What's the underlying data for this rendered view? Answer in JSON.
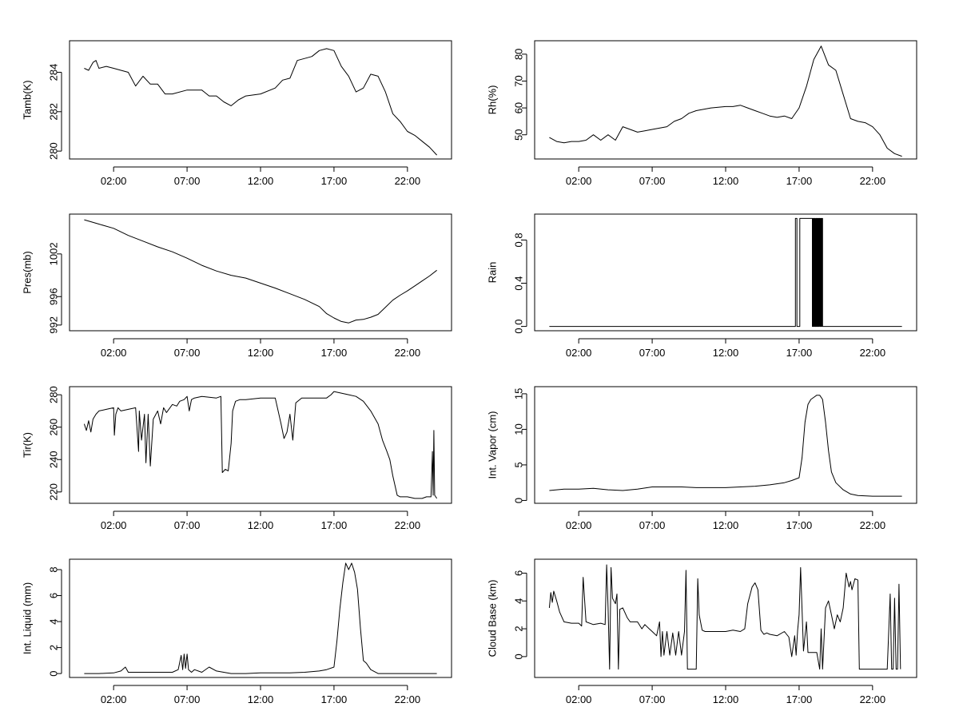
{
  "chart_data": [
    {
      "type": "line",
      "ylabel": "Tamb(K)",
      "x_ticks": [
        "02:00",
        "07:00",
        "12:00",
        "17:00",
        "22:00"
      ],
      "x_tick_hours": [
        2,
        7,
        12,
        17,
        22
      ],
      "xlim_hours": [
        -1,
        25
      ],
      "yticks": [
        280,
        282,
        284
      ],
      "ylim": [
        279.6,
        285.6
      ],
      "series": [
        {
          "x": [
            0,
            0.3,
            0.6,
            0.8,
            1,
            1.5,
            2,
            2.5,
            3,
            3.5,
            4,
            4.5,
            5,
            5.5,
            6,
            7,
            8,
            8.5,
            9,
            9.5,
            10,
            10.5,
            11,
            12,
            13,
            13.5,
            14,
            14.5,
            15,
            15.5,
            16,
            16.5,
            17,
            17.5,
            18,
            18.5,
            19,
            19.5,
            20,
            20.5,
            21,
            21.5,
            22,
            22.5,
            23,
            23.5,
            24
          ],
          "y": [
            284.2,
            284.1,
            284.5,
            284.6,
            284.2,
            284.3,
            284.2,
            284.1,
            284.0,
            283.3,
            283.8,
            283.4,
            283.4,
            282.9,
            282.9,
            283.1,
            283.1,
            282.8,
            282.8,
            282.5,
            282.3,
            282.6,
            282.8,
            282.9,
            283.2,
            283.6,
            283.7,
            284.6,
            284.7,
            284.8,
            285.1,
            285.2,
            285.1,
            284.3,
            283.8,
            283.0,
            283.2,
            283.9,
            283.8,
            283.0,
            281.9,
            281.5,
            281.0,
            280.8,
            280.5,
            280.2,
            279.8
          ]
        }
      ]
    },
    {
      "type": "line",
      "ylabel": "Rh(%)",
      "x_ticks": [
        "02:00",
        "07:00",
        "12:00",
        "17:00",
        "22:00"
      ],
      "x_tick_hours": [
        2,
        7,
        12,
        17,
        22
      ],
      "xlim_hours": [
        -1,
        25
      ],
      "yticks": [
        50,
        60,
        70,
        80
      ],
      "ylim": [
        41,
        85
      ],
      "series": [
        {
          "x": [
            0,
            0.5,
            1,
            1.5,
            2,
            2.5,
            3,
            3.5,
            4,
            4.5,
            5,
            5.5,
            6,
            6.5,
            7,
            8,
            8.5,
            9,
            9.5,
            10,
            11,
            12,
            12.5,
            13,
            13.5,
            14,
            14.5,
            15,
            15.5,
            16,
            16.5,
            17,
            17.5,
            18,
            18.5,
            19,
            19.5,
            20,
            20.5,
            21,
            21.5,
            22,
            22.5,
            23,
            23.5,
            24
          ],
          "y": [
            49,
            47.5,
            47,
            47.5,
            47.5,
            48,
            50,
            48,
            50,
            48,
            53,
            52,
            51,
            51.5,
            52,
            53,
            55,
            56,
            58,
            59,
            60,
            60.5,
            60.5,
            61,
            60,
            59,
            58,
            57,
            56.5,
            57,
            56,
            60,
            68,
            78,
            83,
            76,
            74,
            65,
            56,
            55,
            54.5,
            53,
            50,
            45,
            43,
            42
          ]
        }
      ]
    },
    {
      "type": "line",
      "ylabel": "Pres(mb)",
      "x_ticks": [
        "02:00",
        "07:00",
        "12:00",
        "17:00",
        "22:00"
      ],
      "x_tick_hours": [
        2,
        7,
        12,
        17,
        22
      ],
      "xlim_hours": [
        -1,
        25
      ],
      "yticks": [
        992,
        996,
        1002
      ],
      "ytick_labels": [
        "992",
        "996",
        "1002"
      ],
      "ylim": [
        991.2,
        1007.6
      ],
      "series": [
        {
          "x": [
            0,
            1,
            2,
            3,
            4,
            5,
            6,
            7,
            8,
            9,
            10,
            11,
            12,
            13,
            14,
            15,
            16,
            16.5,
            17,
            17.5,
            18,
            18.5,
            19,
            19.5,
            20,
            20.5,
            21,
            21.5,
            22,
            22.5,
            23,
            23.5,
            24
          ],
          "y": [
            1006.8,
            1006.2,
            1005.6,
            1004.6,
            1003.8,
            1003.0,
            1002.3,
            1001.4,
            1000.4,
            999.6,
            999.0,
            998.6,
            997.9,
            997.2,
            996.4,
            995.6,
            994.6,
            993.6,
            993.0,
            992.5,
            992.3,
            992.7,
            992.8,
            993.1,
            993.5,
            994.5,
            995.5,
            996.2,
            996.8,
            997.5,
            998.2,
            998.9,
            999.7
          ]
        }
      ]
    },
    {
      "type": "line",
      "ylabel": "Rain",
      "x_ticks": [
        "02:00",
        "07:00",
        "12:00",
        "17:00",
        "22:00"
      ],
      "x_tick_hours": [
        2,
        7,
        12,
        17,
        22
      ],
      "xlim_hours": [
        -1,
        25
      ],
      "yticks": [
        0,
        0.4,
        0.8
      ],
      "ytick_labels": [
        "0.0",
        "0.4",
        "0.8"
      ],
      "ylim": [
        -0.04,
        1.04
      ],
      "series": [
        {
          "x": [
            0,
            16.75,
            16.75,
            16.85,
            16.85,
            17.05,
            17.05,
            17.9,
            17.9,
            17.95,
            17.95,
            18.0,
            18.0,
            18.05,
            18.05,
            18.1,
            18.1,
            18.15,
            18.15,
            18.2,
            18.2,
            18.25,
            18.25,
            18.3,
            18.3,
            18.35,
            18.35,
            18.4,
            18.4,
            18.45,
            18.45,
            18.5,
            18.5,
            18.55,
            18.55,
            18.6,
            18.6,
            18.65,
            18.65,
            24
          ],
          "y": [
            0,
            0,
            1,
            1,
            0,
            0,
            1,
            1,
            0,
            0,
            1,
            1,
            0,
            0,
            1,
            1,
            0,
            0,
            1,
            1,
            0,
            0,
            1,
            1,
            0,
            0,
            1,
            1,
            0,
            0,
            1,
            1,
            0,
            0,
            1,
            1,
            0,
            0,
            0,
            0
          ]
        }
      ]
    },
    {
      "type": "line",
      "ylabel": "Tir(K)",
      "x_ticks": [
        "02:00",
        "07:00",
        "12:00",
        "17:00",
        "22:00"
      ],
      "x_tick_hours": [
        2,
        7,
        12,
        17,
        22
      ],
      "xlim_hours": [
        -1,
        25
      ],
      "yticks": [
        220,
        240,
        260,
        280
      ],
      "ylim": [
        213,
        285
      ],
      "series": [
        {
          "x": [
            0,
            0.15,
            0.3,
            0.45,
            0.6,
            0.8,
            1,
            1.5,
            2,
            2.05,
            2.15,
            2.3,
            2.5,
            3,
            3.5,
            3.7,
            3.75,
            3.9,
            4.1,
            4.2,
            4.35,
            4.5,
            4.7,
            5,
            5.2,
            5.4,
            5.6,
            6,
            6.3,
            6.5,
            6.8,
            7,
            7.15,
            7.3,
            7.5,
            8,
            9,
            9.3,
            9.4,
            9.6,
            9.8,
            10,
            10.1,
            10.3,
            10.6,
            11,
            12,
            12.5,
            13,
            13.4,
            13.6,
            13.8,
            14,
            14.2,
            14.4,
            14.8,
            15.5,
            16,
            16.5,
            16.8,
            17,
            17.5,
            18,
            18.5,
            19,
            19.5,
            20,
            20.3,
            20.6,
            20.8,
            21,
            21.3,
            21.5,
            22,
            22.5,
            23,
            23.3,
            23.6,
            23.7,
            23.75,
            23.8,
            23.85,
            24
          ],
          "y": [
            262,
            258,
            264,
            257,
            265,
            268,
            270,
            271,
            272,
            255,
            268,
            272,
            270,
            271,
            272,
            245,
            270,
            252,
            268,
            238,
            268,
            236,
            265,
            270,
            262,
            272,
            269,
            274,
            273,
            276,
            277,
            279,
            270,
            277,
            278,
            279,
            278,
            279,
            232,
            234,
            233,
            250,
            270,
            276,
            277,
            277,
            278,
            278,
            278,
            262,
            253,
            257,
            268,
            252,
            275,
            278,
            278,
            278,
            278,
            280,
            282,
            281,
            280,
            279,
            276,
            270,
            262,
            252,
            245,
            240,
            230,
            218,
            217,
            217,
            216,
            216,
            217,
            217,
            245,
            218,
            258,
            218,
            216
          ]
        }
      ]
    },
    {
      "type": "line",
      "ylabel": "Int. Vapor (cm)",
      "x_ticks": [
        "02:00",
        "07:00",
        "12:00",
        "17:00",
        "22:00"
      ],
      "x_tick_hours": [
        2,
        7,
        12,
        17,
        22
      ],
      "xlim_hours": [
        -1,
        25
      ],
      "yticks": [
        0,
        5,
        10,
        15
      ],
      "ylim": [
        -0.4,
        16
      ],
      "series": [
        {
          "x": [
            0,
            1,
            2,
            3,
            4,
            5,
            6,
            7,
            8,
            9,
            10,
            11,
            12,
            13,
            14,
            15,
            16,
            16.5,
            17,
            17.2,
            17.4,
            17.6,
            17.8,
            18,
            18.2,
            18.4,
            18.6,
            18.8,
            19,
            19.2,
            19.5,
            20,
            20.5,
            21,
            22,
            23,
            24
          ],
          "y": [
            1.4,
            1.6,
            1.6,
            1.7,
            1.5,
            1.4,
            1.6,
            1.9,
            1.9,
            1.9,
            1.8,
            1.8,
            1.8,
            1.9,
            2.0,
            2.2,
            2.5,
            2.8,
            3.2,
            6.0,
            11.0,
            13.5,
            14.2,
            14.5,
            14.8,
            14.8,
            14.2,
            11.0,
            7.0,
            4.0,
            2.5,
            1.5,
            0.9,
            0.7,
            0.6,
            0.6,
            0.6
          ]
        }
      ]
    },
    {
      "type": "line",
      "ylabel": "Int. Liquid (mm)",
      "x_ticks": [
        "02:00",
        "07:00",
        "12:00",
        "17:00",
        "22:00"
      ],
      "x_tick_hours": [
        2,
        7,
        12,
        17,
        22
      ],
      "xlim_hours": [
        -1,
        25
      ],
      "yticks": [
        0,
        2,
        4,
        6,
        8
      ],
      "ylim": [
        -0.3,
        8.8
      ],
      "series": [
        {
          "x": [
            0,
            1,
            2,
            2.5,
            2.8,
            3,
            4,
            5,
            6,
            6.4,
            6.6,
            6.7,
            6.8,
            6.9,
            7,
            7.1,
            7.3,
            7.5,
            8,
            8.5,
            9,
            9.5,
            10,
            11,
            12,
            13,
            14,
            15,
            16,
            16.5,
            17,
            17.2,
            17.4,
            17.6,
            17.8,
            18,
            18.2,
            18.4,
            18.6,
            18.8,
            19,
            19.2,
            19.5,
            20,
            21,
            22,
            23,
            24
          ],
          "y": [
            0,
            0,
            0.05,
            0.2,
            0.5,
            0.1,
            0.1,
            0.1,
            0.1,
            0.3,
            1.4,
            0.3,
            1.5,
            0.4,
            1.5,
            0.3,
            0.1,
            0.3,
            0.1,
            0.5,
            0.2,
            0.1,
            0,
            0,
            0.05,
            0.05,
            0.05,
            0.1,
            0.2,
            0.3,
            0.5,
            2.5,
            5.0,
            7.0,
            8.5,
            8.0,
            8.5,
            7.8,
            6.5,
            3.5,
            1.0,
            0.8,
            0.3,
            0,
            0,
            0,
            0,
            0
          ]
        }
      ]
    },
    {
      "type": "line",
      "ylabel": "Cloud Base (km)",
      "x_ticks": [
        "02:00",
        "07:00",
        "12:00",
        "17:00",
        "22:00"
      ],
      "x_tick_hours": [
        2,
        7,
        12,
        17,
        22
      ],
      "xlim_hours": [
        -1,
        25
      ],
      "yticks": [
        0,
        2,
        4,
        6
      ],
      "ylim": [
        -1.5,
        7
      ],
      "series": [
        {
          "x": [
            0,
            0.1,
            0.2,
            0.3,
            0.5,
            0.7,
            1,
            1.5,
            2,
            2.2,
            2.3,
            2.5,
            3,
            3.5,
            3.8,
            3.9,
            4.0,
            4.1,
            4.2,
            4.3,
            4.5,
            4.6,
            4.7,
            4.8,
            5,
            5.3,
            5.5,
            6,
            6.3,
            6.5,
            6.8,
            7,
            7.3,
            7.5,
            7.6,
            7.7,
            7.8,
            8,
            8.2,
            8.4,
            8.6,
            8.8,
            9,
            9.2,
            9.3,
            9.4,
            9.6,
            9.8,
            9.9,
            10,
            10.1,
            10.2,
            10.4,
            10.6,
            11,
            12,
            12.5,
            13,
            13.3,
            13.5,
            13.8,
            14,
            14.2,
            14.4,
            14.6,
            14.8,
            15,
            15.5,
            16,
            16.3,
            16.5,
            16.7,
            16.8,
            16.9,
            17,
            17.1,
            17.3,
            17.5,
            17.6,
            17.8,
            18,
            18.2,
            18.4,
            18.5,
            18.6,
            18.8,
            19,
            19.2,
            19.4,
            19.6,
            19.8,
            20,
            20.2,
            20.4,
            20.5,
            20.6,
            20.8,
            21,
            21.1,
            21.2,
            21.5,
            22,
            22.5,
            23,
            23.2,
            23.3,
            23.4,
            23.5,
            23.6,
            23.7,
            23.8,
            23.9
          ],
          "y": [
            3.5,
            4.6,
            3.9,
            4.7,
            4.0,
            3.2,
            2.5,
            2.4,
            2.4,
            2.2,
            5.7,
            2.5,
            2.3,
            2.4,
            2.3,
            6.6,
            3.5,
            -0.9,
            6.4,
            4.2,
            3.8,
            4.5,
            -0.9,
            3.4,
            3.5,
            2.8,
            2.5,
            2.5,
            2.0,
            2.3,
            2.0,
            1.8,
            1.5,
            2.5,
            0.0,
            1.8,
            0.1,
            1.8,
            0.1,
            1.7,
            0.1,
            1.8,
            0.1,
            1.8,
            6.2,
            -0.9,
            -0.9,
            -0.9,
            -0.9,
            -0.9,
            5.6,
            3.0,
            1.9,
            1.8,
            1.8,
            1.8,
            1.9,
            1.8,
            2.0,
            3.8,
            5.0,
            5.3,
            4.8,
            1.9,
            1.6,
            1.7,
            1.6,
            1.5,
            1.8,
            1.4,
            0.0,
            1.5,
            0.1,
            1.9,
            3.0,
            6.4,
            0.4,
            2.5,
            0.3,
            0.3,
            0.3,
            0.3,
            -0.9,
            2.0,
            -0.9,
            3.5,
            4.0,
            3.0,
            2.0,
            3.0,
            2.5,
            3.5,
            6.0,
            5.0,
            5.4,
            4.8,
            5.6,
            5.5,
            -0.9,
            -0.9,
            -0.9,
            -0.9,
            -0.9,
            -0.9,
            4.5,
            -0.9,
            -0.9,
            4.2,
            -0.9,
            -0.9,
            5.2,
            -0.9
          ]
        }
      ]
    }
  ]
}
